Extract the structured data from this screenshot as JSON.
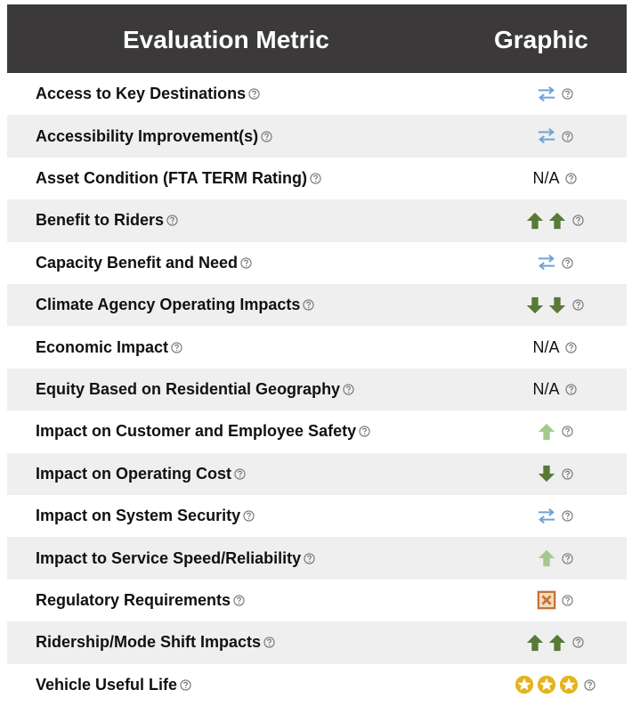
{
  "header": {
    "metric": "Evaluation Metric",
    "graphic": "Graphic"
  },
  "rows": [
    {
      "metric": "Access to Key Destinations"
    },
    {
      "metric": "Accessibility Improvement(s)"
    },
    {
      "metric": "Asset Condition (FTA TERM Rating)",
      "graphic": "N/A"
    },
    {
      "metric": "Benefit to Riders"
    },
    {
      "metric": "Capacity Benefit and Need"
    },
    {
      "metric": "Climate Agency Operating Impacts"
    },
    {
      "metric": "Economic Impact",
      "graphic": "N/A"
    },
    {
      "metric": "Equity Based on Residential Geography",
      "graphic": "N/A"
    },
    {
      "metric": "Impact on Customer and Employee Safety"
    },
    {
      "metric": "Impact on Operating Cost"
    },
    {
      "metric": "Impact on System Security"
    },
    {
      "metric": "Impact to Service Speed/Reliability"
    },
    {
      "metric": "Regulatory Requirements"
    },
    {
      "metric": "Ridership/Mode Shift Impacts"
    },
    {
      "metric": "Vehicle Useful Life"
    }
  ]
}
